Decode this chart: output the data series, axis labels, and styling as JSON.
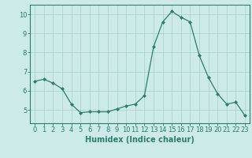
{
  "x": [
    0,
    1,
    2,
    3,
    4,
    5,
    6,
    7,
    8,
    9,
    10,
    11,
    12,
    13,
    14,
    15,
    16,
    17,
    18,
    19,
    20,
    21,
    22,
    23
  ],
  "y": [
    6.5,
    6.6,
    6.4,
    6.1,
    5.3,
    4.85,
    4.9,
    4.9,
    4.9,
    5.05,
    5.2,
    5.3,
    5.75,
    8.3,
    9.6,
    10.15,
    9.85,
    9.6,
    7.85,
    6.7,
    5.85,
    5.3,
    5.4,
    4.7
  ],
  "line_color": "#2e7d6e",
  "marker": "D",
  "marker_size": 2,
  "bg_color": "#cceae8",
  "grid_color": "#aad4d0",
  "xlabel": "Humidex (Indice chaleur)",
  "ylim": [
    4.3,
    10.5
  ],
  "xlim": [
    -0.5,
    23.5
  ],
  "yticks": [
    5,
    6,
    7,
    8,
    9,
    10
  ],
  "xticks": [
    0,
    1,
    2,
    3,
    4,
    5,
    6,
    7,
    8,
    9,
    10,
    11,
    12,
    13,
    14,
    15,
    16,
    17,
    18,
    19,
    20,
    21,
    22,
    23
  ],
  "tick_color": "#2e7d6e",
  "label_color": "#2e7d6e",
  "font_size": 6,
  "xlabel_fontsize": 7
}
